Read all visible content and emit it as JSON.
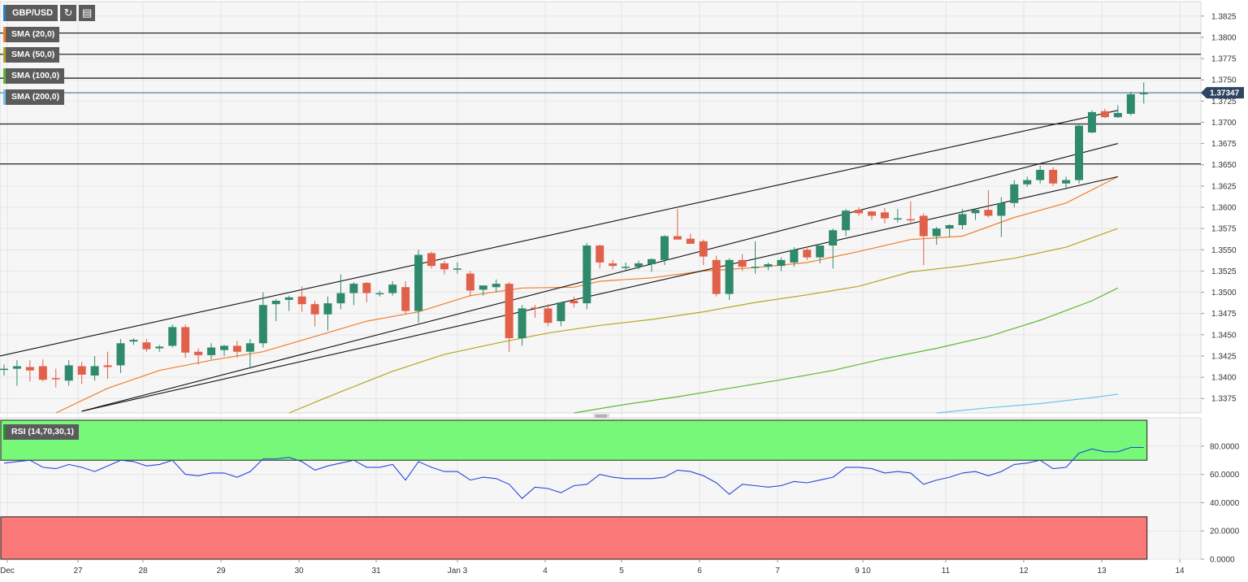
{
  "toolbar": {
    "symbol": "GBP/USD",
    "refresh_icon": "refresh-icon",
    "indicators_icon": "indicators-icon"
  },
  "legend": {
    "sma20": "SMA (20,0)",
    "sma50": "SMA (50,0)",
    "sma100": "SMA (100,0)",
    "sma200": "SMA (200,0)",
    "rsi": "RSI (14,70,30,1)"
  },
  "colors": {
    "up": "#2f8a6b",
    "down": "#e0604a",
    "sma20": "#f07e2c",
    "sma50": "#b5a520",
    "sma100": "#5cb82e",
    "sma200": "#6ec3ea",
    "rsi_line": "#2746d6",
    "rsi_overbought_zone": "#78f878",
    "rsi_oversold_zone": "#fa7878",
    "price_tag": "#2e4460"
  },
  "chart_data": [
    {
      "type": "candlestick",
      "title": "GBP/USD",
      "ylim": [
        1.3358,
        1.3842
      ],
      "y_ticks": [
        "1.3375",
        "1.3400",
        "1.3425",
        "1.3450",
        "1.3475",
        "1.3500",
        "1.3525",
        "1.3550",
        "1.3575",
        "1.3600",
        "1.3625",
        "1.3650",
        "1.3675",
        "1.3700",
        "1.3725",
        "1.3750",
        "1.3775",
        "1.3800",
        "1.3825"
      ],
      "x_labels": [
        "Dec",
        "27",
        "28",
        "29",
        "30",
        "31",
        "Jan 3",
        "4",
        "5",
        "6",
        "7",
        "9 10",
        "11",
        "12",
        "13",
        "14"
      ],
      "current_price": "1.37347",
      "horizontal_levels": [
        1.3805,
        1.378,
        1.3752,
        1.3698,
        1.3651
      ],
      "channel_lines": [
        {
          "from": [
            0,
            1.3425
          ],
          "to": [
            86,
            1.3714
          ]
        },
        {
          "from": [
            6,
            1.336
          ],
          "to": [
            86,
            1.3675
          ]
        },
        {
          "from": [
            6,
            1.336
          ],
          "to": [
            86,
            1.3636
          ]
        }
      ],
      "candles": [
        [
          1.3409,
          1.3415,
          1.3402,
          1.341
        ],
        [
          1.341,
          1.342,
          1.339,
          1.3413
        ],
        [
          1.3412,
          1.342,
          1.3395,
          1.3408
        ],
        [
          1.3413,
          1.3421,
          1.3395,
          1.3397
        ],
        [
          1.3399,
          1.341,
          1.3388,
          1.3398
        ],
        [
          1.3396,
          1.342,
          1.339,
          1.3414
        ],
        [
          1.3413,
          1.3418,
          1.3392,
          1.3403
        ],
        [
          1.3402,
          1.3425,
          1.3396,
          1.3413
        ],
        [
          1.3414,
          1.343,
          1.3398,
          1.3412
        ],
        [
          1.3414,
          1.3445,
          1.3405,
          1.344
        ],
        [
          1.3442,
          1.3446,
          1.3438,
          1.3444
        ],
        [
          1.3441,
          1.3445,
          1.343,
          1.3433
        ],
        [
          1.3434,
          1.3438,
          1.343,
          1.3436
        ],
        [
          1.3437,
          1.3462,
          1.3435,
          1.3459
        ],
        [
          1.3459,
          1.3462,
          1.3423,
          1.3429
        ],
        [
          1.343,
          1.3434,
          1.3415,
          1.3426
        ],
        [
          1.3426,
          1.344,
          1.3421,
          1.3435
        ],
        [
          1.3432,
          1.3438,
          1.3425,
          1.3437
        ],
        [
          1.3437,
          1.3443,
          1.3423,
          1.343
        ],
        [
          1.343,
          1.3445,
          1.341,
          1.344
        ],
        [
          1.344,
          1.35,
          1.3435,
          1.3485
        ],
        [
          1.3486,
          1.3492,
          1.3466,
          1.349
        ],
        [
          1.3491,
          1.3496,
          1.3478,
          1.3494
        ],
        [
          1.3495,
          1.3507,
          1.3477,
          1.3486
        ],
        [
          1.3486,
          1.349,
          1.346,
          1.3474
        ],
        [
          1.3474,
          1.3495,
          1.3455,
          1.3487
        ],
        [
          1.3487,
          1.3521,
          1.348,
          1.3499
        ],
        [
          1.3499,
          1.3512,
          1.3485,
          1.351
        ],
        [
          1.3511,
          1.3512,
          1.3488,
          1.3499
        ],
        [
          1.3499,
          1.3502,
          1.3495,
          1.3499
        ],
        [
          1.3499,
          1.3513,
          1.3496,
          1.3509
        ],
        [
          1.3506,
          1.3513,
          1.3474,
          1.3478
        ],
        [
          1.3478,
          1.355,
          1.3464,
          1.3544
        ],
        [
          1.3546,
          1.3548,
          1.3528,
          1.3531
        ],
        [
          1.3534,
          1.3537,
          1.3521,
          1.3527
        ],
        [
          1.3528,
          1.3535,
          1.3522,
          1.3528
        ],
        [
          1.3522,
          1.3525,
          1.3495,
          1.3502
        ],
        [
          1.3503,
          1.3508,
          1.3496,
          1.3508
        ],
        [
          1.3506,
          1.3515,
          1.35,
          1.351
        ],
        [
          1.351,
          1.3512,
          1.343,
          1.3446
        ],
        [
          1.3446,
          1.3485,
          1.3437,
          1.3481
        ],
        [
          1.3482,
          1.3485,
          1.347,
          1.3481
        ],
        [
          1.3481,
          1.3486,
          1.346,
          1.3464
        ],
        [
          1.3466,
          1.3489,
          1.346,
          1.3488
        ],
        [
          1.349,
          1.3495,
          1.3482,
          1.3487
        ],
        [
          1.3487,
          1.3558,
          1.348,
          1.3555
        ],
        [
          1.3555,
          1.3556,
          1.3528,
          1.3535
        ],
        [
          1.3534,
          1.3538,
          1.3527,
          1.3531
        ],
        [
          1.353,
          1.3535,
          1.3526,
          1.353
        ],
        [
          1.353,
          1.3537,
          1.3527,
          1.3534
        ],
        [
          1.3533,
          1.354,
          1.3524,
          1.3539
        ],
        [
          1.3538,
          1.3567,
          1.3532,
          1.3566
        ],
        [
          1.3566,
          1.3598,
          1.3563,
          1.3562
        ],
        [
          1.3563,
          1.3569,
          1.3559,
          1.3557
        ],
        [
          1.356,
          1.3562,
          1.3532,
          1.3542
        ],
        [
          1.3538,
          1.3543,
          1.3495,
          1.3498
        ],
        [
          1.3498,
          1.354,
          1.3491,
          1.3538
        ],
        [
          1.3538,
          1.3545,
          1.3525,
          1.353
        ],
        [
          1.353,
          1.356,
          1.3522,
          1.353
        ],
        [
          1.353,
          1.3535,
          1.3526,
          1.3533
        ],
        [
          1.3531,
          1.3541,
          1.3525,
          1.3538
        ],
        [
          1.3535,
          1.3553,
          1.353,
          1.355
        ],
        [
          1.355,
          1.3554,
          1.3538,
          1.3541
        ],
        [
          1.3541,
          1.3555,
          1.3534,
          1.3555
        ],
        [
          1.3555,
          1.3575,
          1.3528,
          1.3573
        ],
        [
          1.3573,
          1.3598,
          1.3566,
          1.3596
        ],
        [
          1.3597,
          1.36,
          1.359,
          1.3593
        ],
        [
          1.3595,
          1.3596,
          1.3585,
          1.359
        ],
        [
          1.3594,
          1.3599,
          1.3581,
          1.3587
        ],
        [
          1.3586,
          1.3598,
          1.3582,
          1.3587
        ],
        [
          1.3586,
          1.3607,
          1.3582,
          1.3585
        ],
        [
          1.359,
          1.3593,
          1.3532,
          1.3566
        ],
        [
          1.3566,
          1.3577,
          1.3556,
          1.3575
        ],
        [
          1.3575,
          1.358,
          1.3565,
          1.3579
        ],
        [
          1.3579,
          1.3598,
          1.3574,
          1.3592
        ],
        [
          1.3593,
          1.3598,
          1.3585,
          1.3597
        ],
        [
          1.3597,
          1.362,
          1.3588,
          1.359
        ],
        [
          1.359,
          1.3612,
          1.3565,
          1.3605
        ],
        [
          1.3605,
          1.3632,
          1.36,
          1.3627
        ],
        [
          1.3627,
          1.3636,
          1.3624,
          1.3632
        ],
        [
          1.3632,
          1.3649,
          1.3628,
          1.3644
        ],
        [
          1.3644,
          1.3647,
          1.3625,
          1.3628
        ],
        [
          1.3628,
          1.3636,
          1.3621,
          1.3632
        ],
        [
          1.3632,
          1.3697,
          1.3628,
          1.3696
        ],
        [
          1.3688,
          1.3714,
          1.3687,
          1.3712
        ],
        [
          1.3713,
          1.3716,
          1.3705,
          1.3706
        ],
        [
          1.3706,
          1.372,
          1.3705,
          1.3711
        ],
        [
          1.371,
          1.3736,
          1.3708,
          1.3733
        ],
        [
          1.3733,
          1.3747,
          1.3722,
          1.3735
        ]
      ],
      "series": [
        {
          "name": "SMA (20,0)",
          "points": [
            [
              4,
              1.3358
            ],
            [
              8,
              1.3387
            ],
            [
              12,
              1.3408
            ],
            [
              16,
              1.342
            ],
            [
              20,
              1.343
            ],
            [
              24,
              1.3448
            ],
            [
              28,
              1.3466
            ],
            [
              32,
              1.3477
            ],
            [
              36,
              1.3496
            ],
            [
              40,
              1.3505
            ],
            [
              44,
              1.3506
            ],
            [
              46,
              1.3513
            ],
            [
              50,
              1.3517
            ],
            [
              54,
              1.3525
            ],
            [
              58,
              1.3529
            ],
            [
              62,
              1.3535
            ],
            [
              66,
              1.3548
            ],
            [
              70,
              1.3562
            ],
            [
              74,
              1.3566
            ],
            [
              78,
              1.3588
            ],
            [
              82,
              1.3605
            ],
            [
              86,
              1.3636
            ]
          ]
        },
        {
          "name": "SMA (50,0)",
          "points": [
            [
              22,
              1.3358
            ],
            [
              26,
              1.3383
            ],
            [
              30,
              1.3407
            ],
            [
              34,
              1.3427
            ],
            [
              38,
              1.344
            ],
            [
              42,
              1.3452
            ],
            [
              46,
              1.3461
            ],
            [
              50,
              1.3468
            ],
            [
              54,
              1.3477
            ],
            [
              58,
              1.3488
            ],
            [
              62,
              1.3497
            ],
            [
              66,
              1.3507
            ],
            [
              70,
              1.3524
            ],
            [
              74,
              1.3531
            ],
            [
              78,
              1.354
            ],
            [
              82,
              1.3553
            ],
            [
              86,
              1.3575
            ]
          ]
        },
        {
          "name": "SMA (100,0)",
          "points": [
            [
              44,
              1.3358
            ],
            [
              48,
              1.3368
            ],
            [
              52,
              1.3377
            ],
            [
              56,
              1.3387
            ],
            [
              60,
              1.3397
            ],
            [
              64,
              1.3408
            ],
            [
              68,
              1.3422
            ],
            [
              72,
              1.3434
            ],
            [
              76,
              1.3448
            ],
            [
              80,
              1.3467
            ],
            [
              84,
              1.349
            ],
            [
              86,
              1.3505
            ]
          ]
        },
        {
          "name": "SMA (200,0)",
          "points": [
            [
              72,
              1.3358
            ],
            [
              76,
              1.3364
            ],
            [
              80,
              1.3369
            ],
            [
              84,
              1.3376
            ],
            [
              86,
              1.338
            ]
          ]
        }
      ]
    },
    {
      "type": "line",
      "title": "RSI (14,70,30,1)",
      "ylim": [
        0,
        100
      ],
      "y_ticks": [
        "80.0000",
        "60.0000",
        "40.0000",
        "20.0000",
        "0.0000"
      ],
      "overbought": 70,
      "oversold": 30,
      "series": [
        {
          "name": "RSI (14,70,30,1)",
          "values": [
            68,
            69,
            70,
            65,
            64,
            67,
            65,
            62,
            66,
            70,
            69,
            66,
            67,
            70,
            60,
            59,
            61,
            61,
            58,
            62,
            71,
            71,
            72,
            69,
            63,
            66,
            68,
            70,
            65,
            65,
            67,
            56,
            69,
            65,
            62,
            62,
            56,
            58,
            57,
            53,
            43,
            51,
            50,
            47,
            52,
            53,
            60,
            58,
            57,
            57,
            57,
            58,
            63,
            62,
            59,
            54,
            46,
            53,
            52,
            51,
            52,
            55,
            54,
            56,
            58,
            65,
            65,
            64,
            61,
            62,
            61,
            53,
            56,
            58,
            61,
            62,
            59,
            62,
            67,
            68,
            70,
            64,
            65,
            75,
            78,
            76,
            76,
            79,
            79
          ]
        }
      ]
    }
  ]
}
